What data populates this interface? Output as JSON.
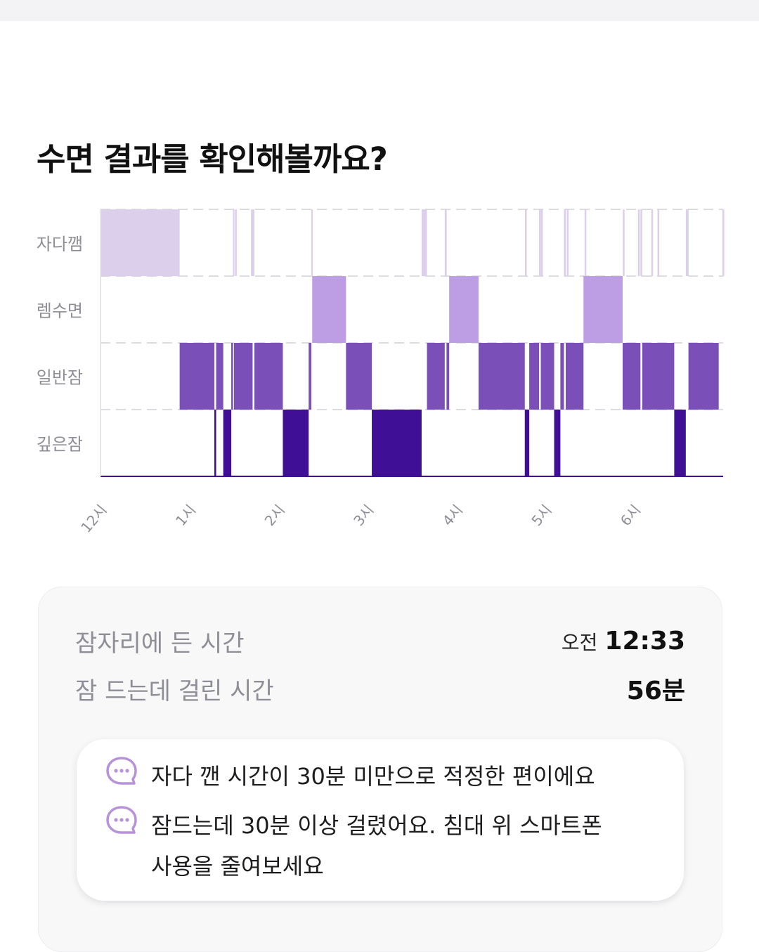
{
  "page": {
    "title": "수면 결과를 확인해볼까요?"
  },
  "chart_data": {
    "type": "hypnogram",
    "stages": [
      "자다깸",
      "렘수면",
      "일반잠",
      "깊은잠"
    ],
    "time_unit": "hours after 12시 (midnight)",
    "x_range": [
      0,
      7
    ],
    "x_ticks": [
      "12시",
      "1시",
      "2시",
      "3시",
      "4시",
      "5시",
      "6시"
    ],
    "colors": {
      "자다깸": "#dccfec",
      "렘수면": "#bd9de3",
      "일반잠": "#7b4fb8",
      "깊은잠": "#3f0f96"
    },
    "segments": [
      {
        "stage": "자다깸",
        "start": 0.0,
        "end": 0.89
      },
      {
        "stage": "일반잠",
        "start": 0.89,
        "end": 1.28
      },
      {
        "stage": "깊은잠",
        "start": 1.28,
        "end": 1.3
      },
      {
        "stage": "일반잠",
        "start": 1.3,
        "end": 1.38
      },
      {
        "stage": "깊은잠",
        "start": 1.38,
        "end": 1.47
      },
      {
        "stage": "일반잠",
        "start": 1.47,
        "end": 1.49
      },
      {
        "stage": "자다깸",
        "start": 1.49,
        "end": 1.5
      },
      {
        "stage": "일반잠",
        "start": 1.5,
        "end": 1.71
      },
      {
        "stage": "자다깸",
        "start": 1.71,
        "end": 1.73
      },
      {
        "stage": "일반잠",
        "start": 1.73,
        "end": 2.05
      },
      {
        "stage": "깊은잠",
        "start": 2.05,
        "end": 2.34
      },
      {
        "stage": "일반잠",
        "start": 2.34,
        "end": 2.37
      },
      {
        "stage": "자다깸",
        "start": 2.37,
        "end": 2.38
      },
      {
        "stage": "렘수면",
        "start": 2.38,
        "end": 2.76
      },
      {
        "stage": "일반잠",
        "start": 2.76,
        "end": 3.05
      },
      {
        "stage": "깊은잠",
        "start": 3.05,
        "end": 3.61
      },
      {
        "stage": "자다깸",
        "start": 3.61,
        "end": 3.67
      },
      {
        "stage": "일반잠",
        "start": 3.67,
        "end": 3.87
      },
      {
        "stage": "자다깸",
        "start": 3.87,
        "end": 3.89
      },
      {
        "stage": "일반잠",
        "start": 3.89,
        "end": 3.92
      },
      {
        "stage": "렘수면",
        "start": 3.92,
        "end": 4.25
      },
      {
        "stage": "일반잠",
        "start": 4.25,
        "end": 4.77
      },
      {
        "stage": "깊은잠",
        "start": 4.77,
        "end": 4.82
      },
      {
        "stage": "일반잠",
        "start": 4.82,
        "end": 4.93
      },
      {
        "stage": "자다깸",
        "start": 4.93,
        "end": 4.95
      },
      {
        "stage": "일반잠",
        "start": 4.95,
        "end": 5.1
      },
      {
        "stage": "깊은잠",
        "start": 5.1,
        "end": 5.17
      },
      {
        "stage": "일반잠",
        "start": 5.17,
        "end": 5.21
      },
      {
        "stage": "자다깸",
        "start": 5.21,
        "end": 5.23
      },
      {
        "stage": "일반잠",
        "start": 5.23,
        "end": 5.43
      },
      {
        "stage": "렘수면",
        "start": 5.43,
        "end": 5.87
      },
      {
        "stage": "일반잠",
        "start": 5.87,
        "end": 6.07
      },
      {
        "stage": "자다깸",
        "start": 6.07,
        "end": 6.09
      },
      {
        "stage": "일반잠",
        "start": 6.09,
        "end": 6.45
      },
      {
        "stage": "깊은잠",
        "start": 6.45,
        "end": 6.58
      },
      {
        "stage": "자다깸",
        "start": 6.58,
        "end": 6.61
      },
      {
        "stage": "일반잠",
        "start": 6.61,
        "end": 6.95
      }
    ],
    "wake_ticks": [
      1.52,
      1.7,
      3.63,
      3.88,
      4.78,
      4.96,
      5.25,
      5.45,
      5.88,
      6.05,
      6.2,
      6.27,
      6.6,
      7.0
    ]
  },
  "summary": {
    "bedtime_label": "잠자리에 든 시간",
    "bedtime_prefix": "오전",
    "bedtime_value": "12:33",
    "latency_label": "잠 드는데 걸린 시간",
    "latency_value": "56분"
  },
  "tips": [
    {
      "icon": "chat-bubble-icon",
      "text": "자다 깬 시간이 30분 미만으로 적정한 편이에요"
    },
    {
      "icon": "chat-bubble-icon",
      "text": "잠드는데 30분 이상 걸렸어요. 침대 위 스마트폰 사용을 줄여보세요"
    }
  ]
}
